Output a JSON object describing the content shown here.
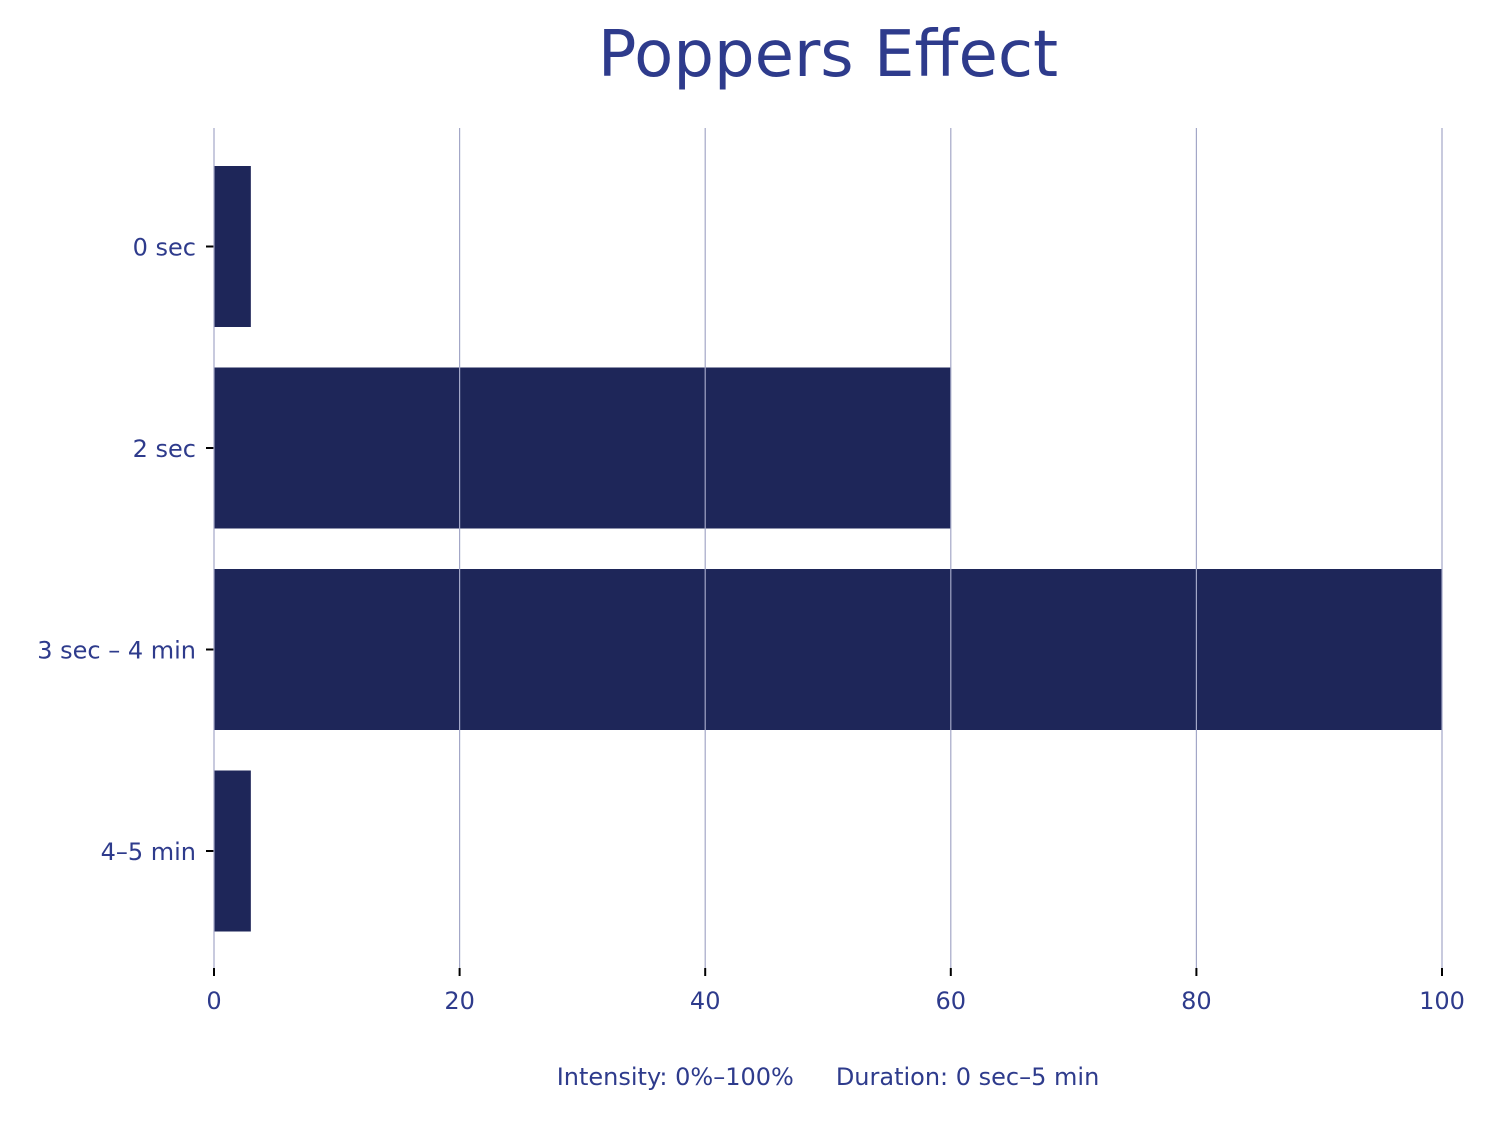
{
  "chart_data": {
    "type": "bar",
    "orientation": "horizontal",
    "title": "Poppers Effect",
    "categories": [
      "0 sec",
      "2 sec",
      "3 sec – 4 min",
      "4–5 min"
    ],
    "values": [
      3,
      60,
      100,
      3
    ],
    "xlim": [
      0,
      100
    ],
    "xticks": [
      "0",
      "20",
      "40",
      "60",
      "80",
      "100"
    ],
    "xlabel_parts": [
      "Intensity: 0%–100%",
      "Duration: 0 sec–5 min"
    ],
    "ylabel": "",
    "grid": "vertical",
    "colors": {
      "bar": "#1e2659",
      "text": "#2e3b8c",
      "grid": "#a3a7c7",
      "tick": "#000000"
    }
  }
}
